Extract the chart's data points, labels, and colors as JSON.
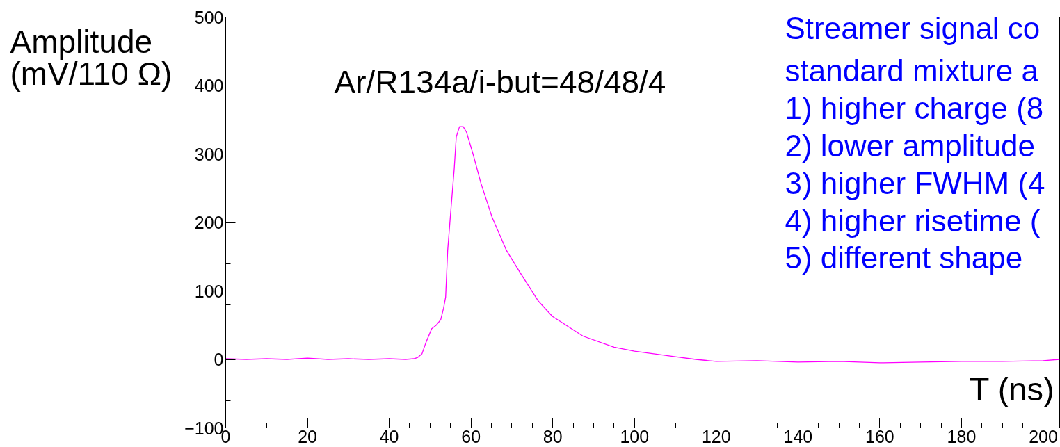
{
  "chart_data": {
    "type": "line",
    "ylabel": "Amplitude\n(mV/110 Ω)",
    "xlabel": "T (ns)",
    "annotations": [
      "Ar/R134a/i-but=48/48/4",
      "Streamer signal co",
      "standard mixture a",
      "1) higher charge (8",
      "2) lower amplitude",
      "3) higher FWHM (4",
      "4) higher risetime (",
      "5) different shape"
    ],
    "series": [
      {
        "color": "#ff00ff",
        "x": [
          0,
          5,
          10,
          15,
          20,
          25,
          30,
          35,
          40,
          44,
          46,
          47,
          48,
          49,
          50.4,
          51.5,
          52.6,
          53.3,
          53.8,
          54.3,
          55.2,
          55.9,
          56.4,
          57.2,
          58.1,
          58.9,
          60.6,
          62.4,
          65.2,
          68.7,
          72.1,
          76.5,
          79.9,
          87.4,
          95,
          100,
          105,
          110,
          115,
          120,
          130,
          140,
          150,
          160,
          170,
          180,
          190,
          200,
          204
        ],
        "values": [
          1,
          0,
          1,
          0,
          2,
          0,
          1,
          0,
          1,
          0,
          1,
          3,
          8,
          25,
          45,
          50,
          58,
          75,
          91,
          159,
          227,
          278,
          325,
          340,
          340,
          332,
          298,
          258,
          207,
          159,
          126,
          85,
          63,
          34,
          18,
          12,
          8,
          4,
          0,
          -3,
          -2,
          -4,
          -3,
          -5,
          -4,
          -3,
          -3,
          -2,
          0
        ]
      }
    ],
    "xlim": [
      0,
      204
    ],
    "ylim": [
      -100,
      500
    ],
    "xticks": [
      0,
      20,
      40,
      60,
      80,
      100,
      120,
      140,
      160,
      180,
      200
    ],
    "yticks": [
      -100,
      0,
      100,
      200,
      300,
      400,
      500
    ],
    "grid": false
  }
}
